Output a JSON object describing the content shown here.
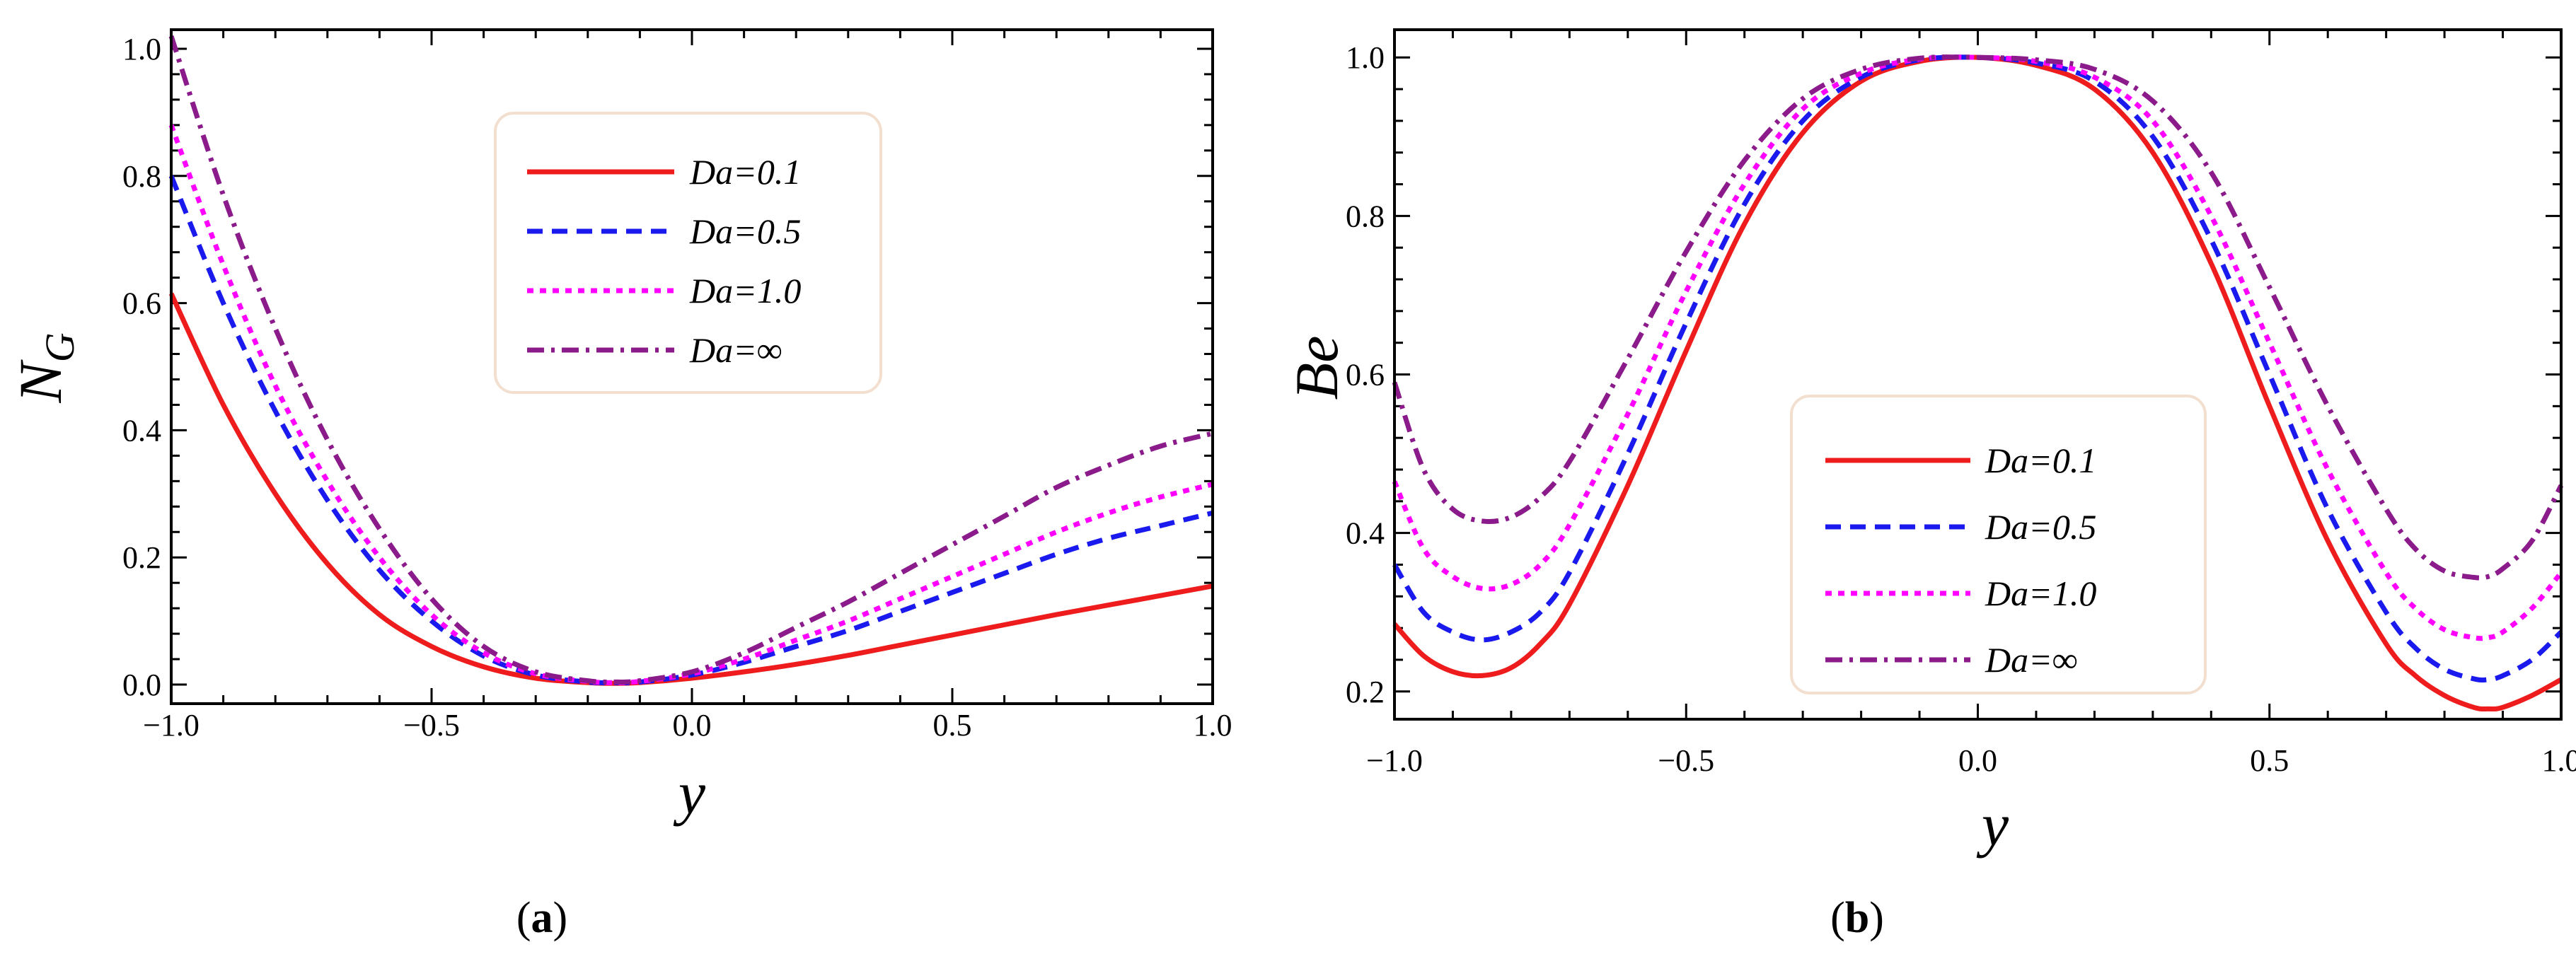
{
  "chart_data": [
    {
      "id": "a",
      "type": "line",
      "caption_open": "(",
      "caption_letter": "a",
      "caption_close": ")",
      "ylabel_main": "N",
      "ylabel_sub": "G",
      "xlabel": "y",
      "xlim": [
        -1.0,
        1.0
      ],
      "ylim": [
        -0.03,
        1.03
      ],
      "xticks": [
        -1.0,
        -0.5,
        0.0,
        0.5,
        1.0
      ],
      "xtick_labels": [
        "−1.0",
        "−0.5",
        "0.0",
        "0.5",
        "1.0"
      ],
      "yticks": [
        0.0,
        0.2,
        0.4,
        0.6,
        0.8,
        1.0
      ],
      "ytick_labels": [
        "0.0",
        "0.2",
        "0.4",
        "0.6",
        "0.8",
        "1.0"
      ],
      "legend_position": "top-center",
      "series": [
        {
          "name": "Da=0.1",
          "color": "#ee1c1c",
          "dash": "solid",
          "x": [
            -1.0,
            -0.9,
            -0.8,
            -0.7,
            -0.6,
            -0.5,
            -0.4,
            -0.3,
            -0.2,
            -0.15,
            -0.1,
            0.0,
            0.1,
            0.2,
            0.3,
            0.4,
            0.5,
            0.6,
            0.7,
            0.8,
            0.9,
            1.0
          ],
          "y": [
            0.615,
            0.44,
            0.3,
            0.19,
            0.11,
            0.06,
            0.028,
            0.01,
            0.003,
            0.002,
            0.003,
            0.01,
            0.02,
            0.032,
            0.046,
            0.062,
            0.078,
            0.094,
            0.11,
            0.125,
            0.14,
            0.155
          ]
        },
        {
          "name": "Da=0.5",
          "color": "#1a1aee",
          "dash": "dashed",
          "x": [
            -1.0,
            -0.9,
            -0.8,
            -0.7,
            -0.6,
            -0.5,
            -0.4,
            -0.3,
            -0.2,
            -0.15,
            -0.1,
            0.0,
            0.1,
            0.2,
            0.3,
            0.4,
            0.5,
            0.6,
            0.7,
            0.8,
            0.9,
            1.0
          ],
          "y": [
            0.8,
            0.6,
            0.43,
            0.29,
            0.18,
            0.1,
            0.045,
            0.015,
            0.004,
            0.003,
            0.004,
            0.015,
            0.035,
            0.06,
            0.085,
            0.115,
            0.145,
            0.175,
            0.205,
            0.23,
            0.25,
            0.27
          ]
        },
        {
          "name": "Da=1.0",
          "color": "#ff00ff",
          "dash": "dotted",
          "x": [
            -1.0,
            -0.9,
            -0.8,
            -0.7,
            -0.6,
            -0.5,
            -0.4,
            -0.3,
            -0.2,
            -0.15,
            -0.1,
            0.0,
            0.1,
            0.2,
            0.3,
            0.4,
            0.5,
            0.6,
            0.7,
            0.8,
            0.9,
            1.0
          ],
          "y": [
            0.88,
            0.66,
            0.47,
            0.32,
            0.2,
            0.11,
            0.05,
            0.017,
            0.005,
            0.003,
            0.005,
            0.017,
            0.04,
            0.07,
            0.1,
            0.135,
            0.17,
            0.205,
            0.24,
            0.27,
            0.295,
            0.315
          ]
        },
        {
          "name": "Da=∞",
          "color": "#8b1a8b",
          "dash": "dashdot",
          "x": [
            -1.0,
            -0.9,
            -0.8,
            -0.7,
            -0.6,
            -0.5,
            -0.4,
            -0.3,
            -0.2,
            -0.15,
            -0.1,
            0.0,
            0.1,
            0.2,
            0.3,
            0.4,
            0.5,
            0.6,
            0.7,
            0.8,
            0.9,
            1.0
          ],
          "y": [
            1.02,
            0.77,
            0.56,
            0.385,
            0.245,
            0.135,
            0.06,
            0.02,
            0.006,
            0.004,
            0.006,
            0.02,
            0.05,
            0.09,
            0.13,
            0.175,
            0.22,
            0.265,
            0.31,
            0.345,
            0.375,
            0.395
          ]
        }
      ]
    },
    {
      "id": "b",
      "type": "line",
      "caption_open": "(",
      "caption_letter": "b",
      "caption_close": ")",
      "ylabel_main": "Be",
      "ylabel_sub": "",
      "xlabel": "y",
      "xlim": [
        -1.0,
        1.0
      ],
      "ylim": [
        0.165,
        1.035
      ],
      "xticks": [
        -1.0,
        -0.5,
        0.0,
        0.5,
        1.0
      ],
      "xtick_labels": [
        "−1.0",
        "−0.5",
        "0.0",
        "0.5",
        "1.0"
      ],
      "yticks": [
        0.2,
        0.4,
        0.6,
        0.8,
        1.0
      ],
      "ytick_labels": [
        "0.2",
        "0.4",
        "0.6",
        "0.8",
        "1.0"
      ],
      "legend_position": "lower-center",
      "series": [
        {
          "name": "Da=0.1",
          "color": "#ee1c1c",
          "dash": "solid",
          "x": [
            -1.0,
            -0.95,
            -0.9,
            -0.85,
            -0.8,
            -0.75,
            -0.7,
            -0.6,
            -0.5,
            -0.4,
            -0.3,
            -0.2,
            -0.1,
            0.0,
            0.1,
            0.2,
            0.3,
            0.4,
            0.5,
            0.6,
            0.7,
            0.75,
            0.8,
            0.85,
            0.875,
            0.9,
            0.95,
            1.0
          ],
          "y": [
            0.285,
            0.245,
            0.225,
            0.22,
            0.23,
            0.26,
            0.31,
            0.46,
            0.63,
            0.79,
            0.905,
            0.97,
            0.995,
            1.0,
            0.99,
            0.96,
            0.88,
            0.74,
            0.56,
            0.39,
            0.26,
            0.22,
            0.195,
            0.18,
            0.178,
            0.18,
            0.195,
            0.215
          ]
        },
        {
          "name": "Da=0.5",
          "color": "#1a1aee",
          "dash": "dashed",
          "x": [
            -1.0,
            -0.95,
            -0.9,
            -0.85,
            -0.8,
            -0.75,
            -0.7,
            -0.6,
            -0.5,
            -0.4,
            -0.3,
            -0.2,
            -0.1,
            0.0,
            0.1,
            0.2,
            0.3,
            0.4,
            0.5,
            0.6,
            0.7,
            0.75,
            0.8,
            0.85,
            0.875,
            0.9,
            0.95,
            1.0
          ],
          "y": [
            0.36,
            0.3,
            0.275,
            0.265,
            0.275,
            0.3,
            0.35,
            0.5,
            0.665,
            0.815,
            0.92,
            0.975,
            0.997,
            1.0,
            0.993,
            0.97,
            0.9,
            0.77,
            0.6,
            0.43,
            0.3,
            0.255,
            0.228,
            0.216,
            0.215,
            0.22,
            0.24,
            0.275
          ]
        },
        {
          "name": "Da=1.0",
          "color": "#ff00ff",
          "dash": "dotted",
          "x": [
            -1.0,
            -0.95,
            -0.9,
            -0.85,
            -0.8,
            -0.75,
            -0.7,
            -0.6,
            -0.5,
            -0.4,
            -0.3,
            -0.2,
            -0.1,
            0.0,
            0.1,
            0.2,
            0.3,
            0.4,
            0.5,
            0.6,
            0.7,
            0.75,
            0.8,
            0.85,
            0.875,
            0.9,
            0.95,
            1.0
          ],
          "y": [
            0.465,
            0.38,
            0.345,
            0.33,
            0.335,
            0.36,
            0.41,
            0.55,
            0.705,
            0.84,
            0.935,
            0.98,
            0.998,
            1.0,
            0.995,
            0.975,
            0.92,
            0.8,
            0.64,
            0.48,
            0.35,
            0.305,
            0.278,
            0.268,
            0.268,
            0.275,
            0.305,
            0.35
          ]
        },
        {
          "name": "Da=∞",
          "color": "#8b1a8b",
          "dash": "dashdot",
          "x": [
            -1.0,
            -0.95,
            -0.9,
            -0.85,
            -0.8,
            -0.75,
            -0.7,
            -0.6,
            -0.5,
            -0.4,
            -0.3,
            -0.2,
            -0.1,
            0.0,
            0.1,
            0.2,
            0.3,
            0.4,
            0.5,
            0.6,
            0.7,
            0.75,
            0.8,
            0.85,
            0.875,
            0.9,
            0.95,
            1.0
          ],
          "y": [
            0.59,
            0.48,
            0.43,
            0.415,
            0.42,
            0.445,
            0.49,
            0.62,
            0.755,
            0.87,
            0.948,
            0.985,
            0.999,
            1.0,
            0.997,
            0.985,
            0.945,
            0.855,
            0.71,
            0.56,
            0.43,
            0.38,
            0.352,
            0.344,
            0.345,
            0.355,
            0.39,
            0.46
          ]
        }
      ]
    }
  ]
}
